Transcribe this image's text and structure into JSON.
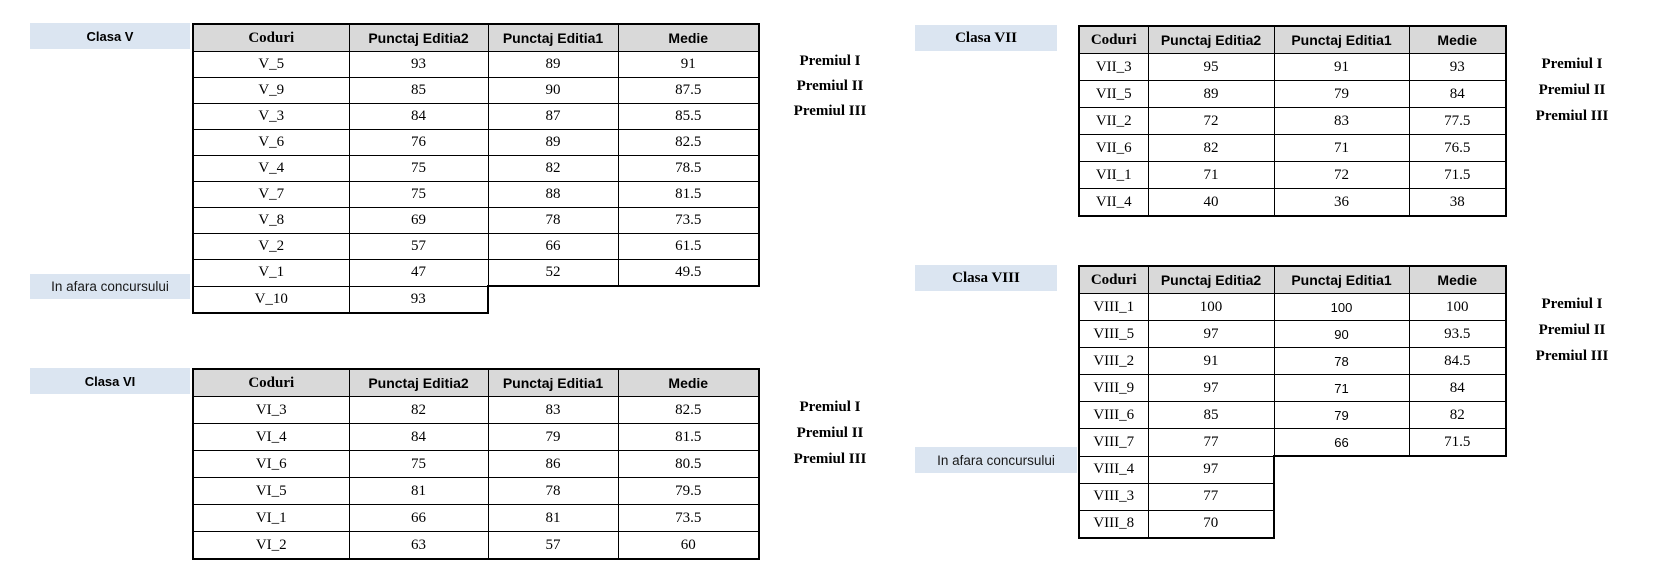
{
  "colors": {
    "label_background": "#dbe5f1",
    "header_background": "#d9d9d9",
    "border": "#000000",
    "text": "#000000"
  },
  "columns": [
    "Coduri",
    "Punctaj Editia2",
    "Punctaj Editia1",
    "Medie"
  ],
  "prize_labels": [
    "Premiul I",
    "Premiul II",
    "Premiul III"
  ],
  "out_of_contest_label": "In afara concursului",
  "groups": [
    {
      "label": "Clasa V",
      "rows": [
        {
          "code": "V_5",
          "e2": "93",
          "e1": "89",
          "medie": "91"
        },
        {
          "code": "V_9",
          "e2": "85",
          "e1": "90",
          "medie": "87.5"
        },
        {
          "code": "V_3",
          "e2": "84",
          "e1": "87",
          "medie": "85.5"
        },
        {
          "code": "V_6",
          "e2": "76",
          "e1": "89",
          "medie": "82.5"
        },
        {
          "code": "V_4",
          "e2": "75",
          "e1": "82",
          "medie": "78.5"
        },
        {
          "code": "V_7",
          "e2": "75",
          "e1": "88",
          "medie": "81.5"
        },
        {
          "code": "V_8",
          "e2": "69",
          "e1": "78",
          "medie": "73.5"
        },
        {
          "code": "V_2",
          "e2": "57",
          "e1": "66",
          "medie": "61.5"
        },
        {
          "code": "V_1",
          "e2": "47",
          "e1": "52",
          "medie": "49.5"
        },
        {
          "code": "V_10",
          "e2": "93",
          "e1": null,
          "medie": null,
          "out_of_contest": true
        }
      ]
    },
    {
      "label": "Clasa VI",
      "rows": [
        {
          "code": "VI_3",
          "e2": "82",
          "e1": "83",
          "medie": "82.5"
        },
        {
          "code": "VI_4",
          "e2": "84",
          "e1": "79",
          "medie": "81.5"
        },
        {
          "code": "VI_6",
          "e2": "75",
          "e1": "86",
          "medie": "80.5"
        },
        {
          "code": "VI_5",
          "e2": "81",
          "e1": "78",
          "medie": "79.5"
        },
        {
          "code": "VI_1",
          "e2": "66",
          "e1": "81",
          "medie": "73.5"
        },
        {
          "code": "VI_2",
          "e2": "63",
          "e1": "57",
          "medie": "60"
        }
      ]
    },
    {
      "label": "Clasa VII",
      "rows": [
        {
          "code": "VII_3",
          "e2": "95",
          "e1": "91",
          "medie": "93"
        },
        {
          "code": "VII_5",
          "e2": "89",
          "e1": "79",
          "medie": "84"
        },
        {
          "code": "VII_2",
          "e2": "72",
          "e1": "83",
          "medie": "77.5"
        },
        {
          "code": "VII_6",
          "e2": "82",
          "e1": "71",
          "medie": "76.5"
        },
        {
          "code": "VII_1",
          "e2": "71",
          "e1": "72",
          "medie": "71.5"
        },
        {
          "code": "VII_4",
          "e2": "40",
          "e1": "36",
          "medie": "38"
        }
      ]
    },
    {
      "label": "Clasa VIII",
      "rows": [
        {
          "code": "VIII_1",
          "e2": "100",
          "e1": "100",
          "medie": "100"
        },
        {
          "code": "VIII_5",
          "e2": "97",
          "e1": "90",
          "medie": "93.5"
        },
        {
          "code": "VIII_2",
          "e2": "91",
          "e1": "78",
          "medie": "84.5"
        },
        {
          "code": "VIII_9",
          "e2": "97",
          "e1": "71",
          "medie": "84"
        },
        {
          "code": "VIII_6",
          "e2": "85",
          "e1": "79",
          "medie": "82"
        },
        {
          "code": "VIII_7",
          "e2": "77",
          "e1": "66",
          "medie": "71.5"
        },
        {
          "code": "VIII_4",
          "e2": "97",
          "e1": null,
          "medie": null,
          "out_of_contest": true
        },
        {
          "code": "VIII_3",
          "e2": "77",
          "e1": null,
          "medie": null,
          "out_of_contest": true
        },
        {
          "code": "VIII_8",
          "e2": "70",
          "e1": null,
          "medie": null,
          "out_of_contest": true
        }
      ]
    }
  ]
}
